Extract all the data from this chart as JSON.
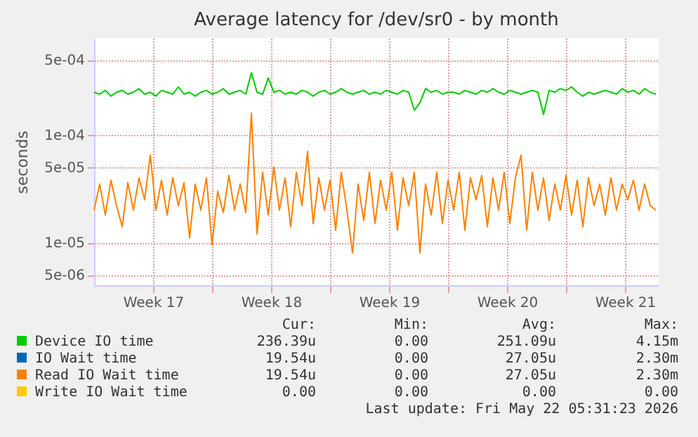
{
  "chart_data": {
    "type": "line",
    "title": "Average latency for /dev/sr0 - by month",
    "ylabel": "seconds",
    "log": "y",
    "grid": true,
    "legend": "bottom",
    "xlim": [
      "2026-04-20T00:00",
      "2026-05-23T12:00"
    ],
    "xticks": [
      {
        "value": "2026-04-23T12:00",
        "label": "Week 17"
      },
      {
        "value": "2026-04-27T00:00",
        "label": null
      },
      {
        "value": "2026-04-30T12:00",
        "label": "Week 18"
      },
      {
        "value": "2026-05-04T00:00",
        "label": null
      },
      {
        "value": "2026-05-07T12:00",
        "label": "Week 19"
      },
      {
        "value": "2026-05-11T00:00",
        "label": null
      },
      {
        "value": "2026-05-14T12:00",
        "label": "Week 20"
      },
      {
        "value": "2026-05-18T00:00",
        "label": null
      },
      {
        "value": "2026-05-21T12:00",
        "label": "Week 21"
      }
    ],
    "ylim": [
      4e-06,
      0.0008
    ],
    "yticks": [
      {
        "value": 5e-06,
        "label": "5e-06"
      },
      {
        "value": 1e-05,
        "label": "1e-05"
      },
      {
        "value": 5e-05,
        "label": "5e-05"
      },
      {
        "value": 0.0001,
        "label": "1e-04"
      },
      {
        "value": 0.0005,
        "label": "5e-04"
      }
    ],
    "x": [
      "2026-04-20T00:00",
      "2026-04-20T08:00",
      "2026-04-20T16:00",
      "2026-04-21T00:00",
      "2026-04-21T08:00",
      "2026-04-21T16:00",
      "2026-04-22T00:00",
      "2026-04-22T08:00",
      "2026-04-22T16:00",
      "2026-04-23T00:00",
      "2026-04-23T08:00",
      "2026-04-23T16:00",
      "2026-04-24T00:00",
      "2026-04-24T08:00",
      "2026-04-24T16:00",
      "2026-04-25T00:00",
      "2026-04-25T08:00",
      "2026-04-25T16:00",
      "2026-04-26T00:00",
      "2026-04-26T08:00",
      "2026-04-26T16:00",
      "2026-04-27T00:00",
      "2026-04-27T08:00",
      "2026-04-27T16:00",
      "2026-04-28T00:00",
      "2026-04-28T08:00",
      "2026-04-28T16:00",
      "2026-04-29T00:00",
      "2026-04-29T08:00",
      "2026-04-29T16:00",
      "2026-04-30T00:00",
      "2026-04-30T08:00",
      "2026-04-30T16:00",
      "2026-05-01T00:00",
      "2026-05-01T08:00",
      "2026-05-01T16:00",
      "2026-05-02T00:00",
      "2026-05-02T08:00",
      "2026-05-02T16:00",
      "2026-05-03T00:00",
      "2026-05-03T08:00",
      "2026-05-03T16:00",
      "2026-05-04T00:00",
      "2026-05-04T08:00",
      "2026-05-04T16:00",
      "2026-05-05T00:00",
      "2026-05-05T08:00",
      "2026-05-05T16:00",
      "2026-05-06T00:00",
      "2026-05-06T08:00",
      "2026-05-06T16:00",
      "2026-05-07T00:00",
      "2026-05-07T08:00",
      "2026-05-07T16:00",
      "2026-05-08T00:00",
      "2026-05-08T08:00",
      "2026-05-08T16:00",
      "2026-05-09T00:00",
      "2026-05-09T08:00",
      "2026-05-09T16:00",
      "2026-05-10T00:00",
      "2026-05-10T08:00",
      "2026-05-10T16:00",
      "2026-05-11T00:00",
      "2026-05-11T08:00",
      "2026-05-11T16:00",
      "2026-05-12T00:00",
      "2026-05-12T08:00",
      "2026-05-12T16:00",
      "2026-05-13T00:00",
      "2026-05-13T08:00",
      "2026-05-13T16:00",
      "2026-05-14T00:00",
      "2026-05-14T08:00",
      "2026-05-14T16:00",
      "2026-05-15T00:00",
      "2026-05-15T08:00",
      "2026-05-15T16:00",
      "2026-05-16T00:00",
      "2026-05-16T08:00",
      "2026-05-16T16:00",
      "2026-05-17T00:00",
      "2026-05-17T08:00",
      "2026-05-17T16:00",
      "2026-05-18T00:00",
      "2026-05-18T08:00",
      "2026-05-18T16:00",
      "2026-05-19T00:00",
      "2026-05-19T08:00",
      "2026-05-19T16:00",
      "2026-05-20T00:00",
      "2026-05-20T08:00",
      "2026-05-20T16:00",
      "2026-05-21T00:00",
      "2026-05-21T08:00",
      "2026-05-21T16:00",
      "2026-05-22T00:00",
      "2026-05-22T08:00",
      "2026-05-22T16:00",
      "2026-05-23T00:00",
      "2026-05-23T08:00"
    ],
    "series": [
      {
        "name": "Device IO time",
        "color": "#00cc00",
        "values": [
          0.00025,
          0.00024,
          0.00026,
          0.00023,
          0.00025,
          0.00026,
          0.00024,
          0.00025,
          0.00027,
          0.00024,
          0.00025,
          0.00023,
          0.00026,
          0.00025,
          0.00024,
          0.00028,
          0.00024,
          0.00025,
          0.00023,
          0.00025,
          0.00026,
          0.00024,
          0.00025,
          0.00027,
          0.00024,
          0.00025,
          0.00026,
          0.00024,
          0.00038,
          0.00025,
          0.00024,
          0.00034,
          0.00025,
          0.00026,
          0.00024,
          0.00025,
          0.00024,
          0.00026,
          0.00025,
          0.00023,
          0.00025,
          0.00026,
          0.00024,
          0.00025,
          0.00027,
          0.00025,
          0.00024,
          0.00025,
          0.00026,
          0.00024,
          0.00025,
          0.00024,
          0.00026,
          0.00025,
          0.00024,
          0.00026,
          0.00025,
          0.00017,
          0.0002,
          0.00027,
          0.00025,
          0.00026,
          0.00024,
          0.00025,
          0.00025,
          0.00024,
          0.00026,
          0.00025,
          0.00024,
          0.00026,
          0.00025,
          0.00027,
          0.00025,
          0.00024,
          0.00026,
          0.00025,
          0.00024,
          0.00025,
          0.00026,
          0.00025,
          0.000155,
          0.00026,
          0.00025,
          0.00027,
          0.00026,
          0.00028,
          0.00025,
          0.00023,
          0.00025,
          0.00024,
          0.00025,
          0.00026,
          0.00025,
          0.00024,
          0.00027,
          0.00025,
          0.00026,
          0.00024,
          0.00027,
          0.00025,
          0.00024
        ]
      },
      {
        "name": "IO Wait time",
        "color": "#0066b3",
        "values": [
          null,
          null,
          null,
          null,
          null,
          null,
          null,
          null,
          null,
          null,
          null,
          null,
          null,
          null,
          null,
          null,
          null,
          null,
          null,
          null,
          null,
          null,
          null,
          null,
          null,
          null,
          null,
          null,
          null,
          null,
          null,
          null,
          null,
          null,
          null,
          null,
          null,
          null,
          null,
          null,
          null,
          null,
          null,
          null,
          null,
          null,
          null,
          null,
          null,
          null,
          null,
          null,
          null,
          null,
          null,
          null,
          null,
          null,
          null,
          null,
          null,
          null,
          null,
          null,
          null,
          null,
          null,
          null,
          null,
          null,
          null,
          null,
          null,
          null,
          null,
          null,
          null,
          null,
          null,
          null,
          null,
          null,
          null,
          null,
          null,
          null,
          null,
          null,
          null,
          null,
          null,
          null,
          null,
          null,
          null,
          null,
          null,
          null,
          null,
          null,
          null
        ]
      },
      {
        "name": "Read IO Wait time",
        "color": "#ff8000",
        "values": [
          2e-05,
          3.5e-05,
          1.8e-05,
          3.8e-05,
          2.2e-05,
          1.4e-05,
          3.6e-05,
          2e-05,
          4e-05,
          2.5e-05,
          6.5e-05,
          2e-05,
          3.8e-05,
          1.8e-05,
          4e-05,
          2.2e-05,
          3.6e-05,
          1.1e-05,
          3.5e-05,
          2e-05,
          4e-05,
          9.5e-06,
          3e-05,
          1.9e-05,
          4.2e-05,
          2e-05,
          3.5e-05,
          1.9e-05,
          0.00016,
          1.2e-05,
          4.5e-05,
          1.8e-05,
          5e-05,
          2e-05,
          4e-05,
          1.4e-05,
          4.5e-05,
          2.2e-05,
          7e-05,
          1.5e-05,
          4e-05,
          2e-05,
          3.8e-05,
          1.3e-05,
          4.5e-05,
          2e-05,
          8e-06,
          3.5e-05,
          1.6e-05,
          4.5e-05,
          1.5e-05,
          3.8e-05,
          2e-05,
          4.5e-05,
          1.3e-05,
          4e-05,
          2.2e-05,
          4.5e-05,
          8e-06,
          3.5e-05,
          1.8e-05,
          4.5e-05,
          1.5e-05,
          3.8e-05,
          2e-05,
          4.5e-05,
          1.3e-05,
          4e-05,
          2.5e-05,
          4.2e-05,
          1.4e-05,
          4e-05,
          2e-05,
          4.5e-05,
          1.5e-05,
          4e-05,
          6.5e-05,
          1.3e-05,
          4.5e-05,
          2e-05,
          4e-05,
          1.6e-05,
          3.5e-05,
          2e-05,
          4.2e-05,
          1.8e-05,
          3.8e-05,
          1.4e-05,
          4e-05,
          2.2e-05,
          3.5e-05,
          1.8e-05,
          4e-05,
          2e-05,
          3.5e-05,
          2.5e-05,
          3.8e-05,
          2e-05,
          3.5e-05,
          2.2e-05,
          2e-05
        ]
      },
      {
        "name": "Write IO Wait time",
        "color": "#ffcc00",
        "values": [
          null,
          null,
          null,
          null,
          null,
          null,
          null,
          null,
          null,
          null,
          null,
          null,
          null,
          null,
          null,
          null,
          null,
          null,
          null,
          null,
          null,
          null,
          null,
          null,
          null,
          null,
          null,
          null,
          null,
          null,
          null,
          null,
          null,
          null,
          null,
          null,
          null,
          null,
          null,
          null,
          null,
          null,
          null,
          null,
          null,
          null,
          null,
          null,
          null,
          null,
          null,
          null,
          null,
          null,
          null,
          null,
          null,
          null,
          null,
          null,
          null,
          null,
          null,
          null,
          null,
          null,
          null,
          null,
          null,
          null,
          null,
          null,
          null,
          null,
          null,
          null,
          null,
          null,
          null,
          null,
          null,
          null,
          null,
          null,
          null,
          null,
          null,
          null,
          null,
          null,
          null,
          null,
          null,
          null,
          null,
          null,
          null,
          null,
          null,
          null,
          null
        ]
      }
    ],
    "annotations": [
      "Cur:",
      "Min:",
      "Avg:",
      "Max:",
      "236.39u",
      "0.00",
      "251.09u",
      "4.15m",
      "19.54u",
      "0.00",
      "27.05u",
      "2.30m",
      "19.54u",
      "0.00",
      "27.05u",
      "2.30m",
      "0.00",
      "0.00",
      "0.00",
      "0.00",
      "Last update: Fri May 22 05:31:23 2026"
    ]
  }
}
